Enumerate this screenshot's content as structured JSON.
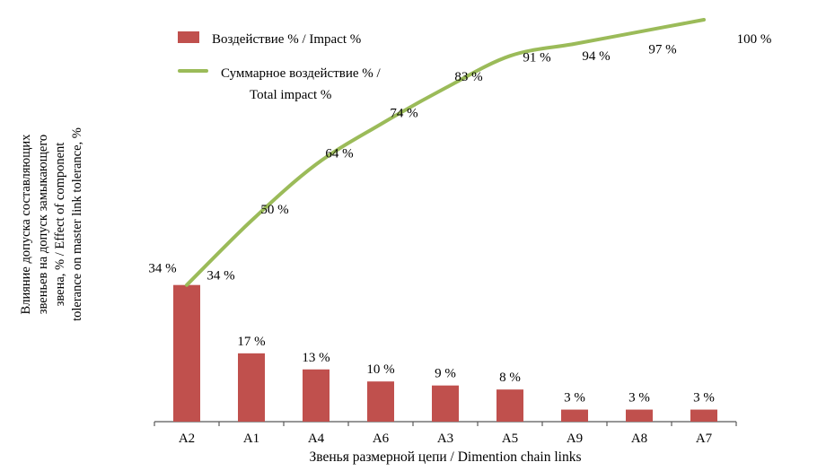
{
  "chart_data": {
    "type": "bar",
    "subtype": "pareto",
    "categories": [
      "A2",
      "A1",
      "A4",
      "A6",
      "A3",
      "A5",
      "A9",
      "A8",
      "A7"
    ],
    "series": [
      {
        "name": "Воздействие % / Impact %",
        "render": "bar",
        "values": [
          34,
          17,
          13,
          10,
          9,
          8,
          3,
          3,
          3
        ],
        "labels": [
          "34 %",
          "17 %",
          "13 %",
          "10 %",
          "9 %",
          "8 %",
          "3 %",
          "3 %",
          "3 %"
        ],
        "color": "#c0504d"
      },
      {
        "name": "Суммарное воздействие % / Total impact %",
        "render": "line",
        "values": [
          34,
          50,
          64,
          74,
          83,
          91,
          94,
          97,
          100
        ],
        "labels": [
          "34 %",
          "50 %",
          "64 %",
          "74 %",
          "83 %",
          "91 %",
          "94 %",
          "97 %",
          "100 %"
        ],
        "color": "#9bbb59"
      }
    ],
    "title": "",
    "xlabel": "Звенья размерной цепи / Dimention chain links",
    "ylabel": "Влияние допуска составляющих\nзвеньев на допуск замыкающего\nзвена, % / Effect of component\ntolerance on master link tolerance, %",
    "ylim": [
      0,
      100
    ],
    "grid": false,
    "legend_position": "top-left"
  },
  "axes": {
    "x_title": "Звенья размерной цепи / Dimention chain links",
    "y_title": "Влияние допуска составляющих\nзвеньев на допуск замыкающего\nзвена, % / Effect of component\ntolerance on master link tolerance, %"
  },
  "legend": {
    "impact_label": "Воздействие % / Impact %",
    "total_label_line1": "Суммарное воздействие % /",
    "total_label_line2": "Total impact %"
  },
  "colors": {
    "bar": "#c0504d",
    "line": "#9bbb59",
    "axis": "#595959",
    "text": "#000000",
    "background": "#ffffff"
  }
}
